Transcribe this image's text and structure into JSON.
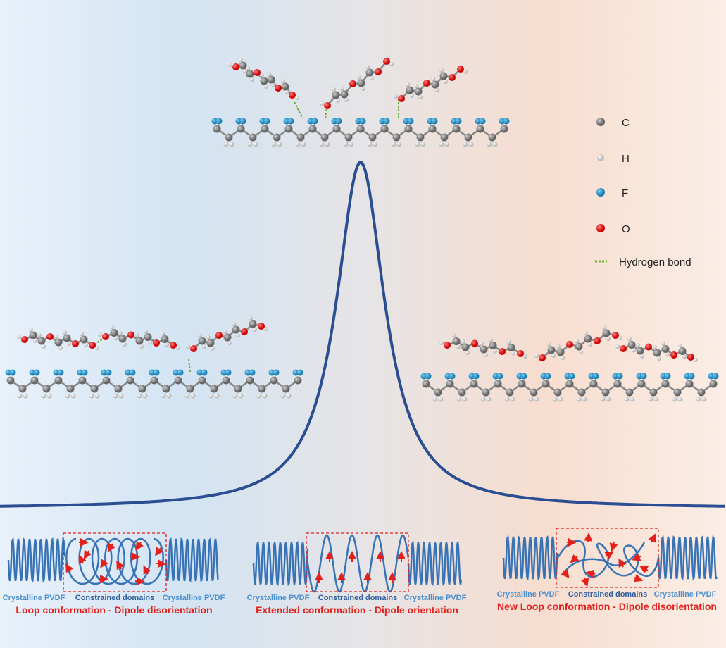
{
  "legend": {
    "items": [
      "C",
      "H",
      "F",
      "O"
    ],
    "hydrogen_bond": "Hydrogen bond"
  },
  "panels": [
    {
      "left": "Crystalline PVDF",
      "middle": "Constrained domains",
      "right": "Crystalline PVDF",
      "caption": "Loop conformation - Dipole disorientation"
    },
    {
      "left": "Crystalline PVDF",
      "middle": "Constrained domains",
      "right": "Crystalline PVDF",
      "caption": "Extended conformation - Dipole orientation"
    },
    {
      "left": "Crystalline PVDF",
      "middle": "Constrained domains",
      "right": "Crystalline PVDF",
      "caption": "New Loop conformation - Dipole disorientation"
    }
  ]
}
